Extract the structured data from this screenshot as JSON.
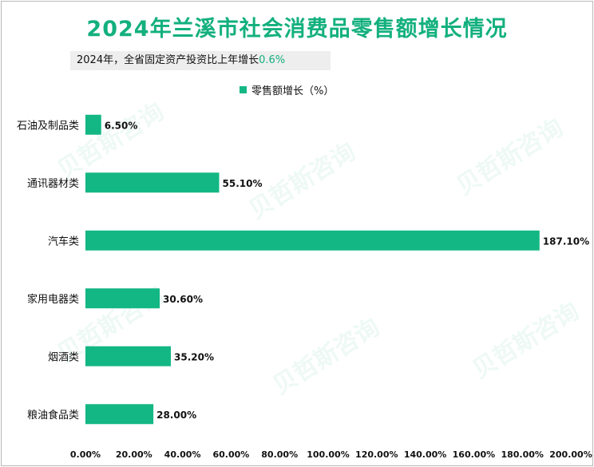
{
  "header": {
    "title": "2024年兰溪市社会消费品零售额增长情况",
    "note_text": "2024年，全省固定资产投资比上年增长",
    "note_value": "0.6%"
  },
  "watermark": "贝哲斯咨询",
  "chart_data": {
    "type": "bar",
    "orientation": "horizontal",
    "categories": [
      "石油及制品类",
      "通讯器材类",
      "汽车类",
      "家用电器类",
      "烟酒类",
      "粮油食品类"
    ],
    "series": [
      {
        "name": "零售额增长（%）",
        "values": [
          6.5,
          55.1,
          187.1,
          30.6,
          35.2,
          28.0
        ],
        "labels": [
          "6.50%",
          "55.10%",
          "187.10%",
          "30.60%",
          "35.20%",
          "28.00%"
        ]
      }
    ],
    "xlim": [
      0,
      200
    ],
    "xticks": [
      0,
      20,
      40,
      60,
      80,
      100,
      120,
      140,
      160,
      180,
      200
    ],
    "xtick_labels": [
      "0.00%",
      "20.00%",
      "40.00%",
      "60.00%",
      "80.00%",
      "100.00%",
      "120.00%",
      "140.00%",
      "160.00%",
      "180.00%",
      "200.00%"
    ],
    "grid": false,
    "legend_position": "top",
    "bar_color": "#13b784"
  }
}
